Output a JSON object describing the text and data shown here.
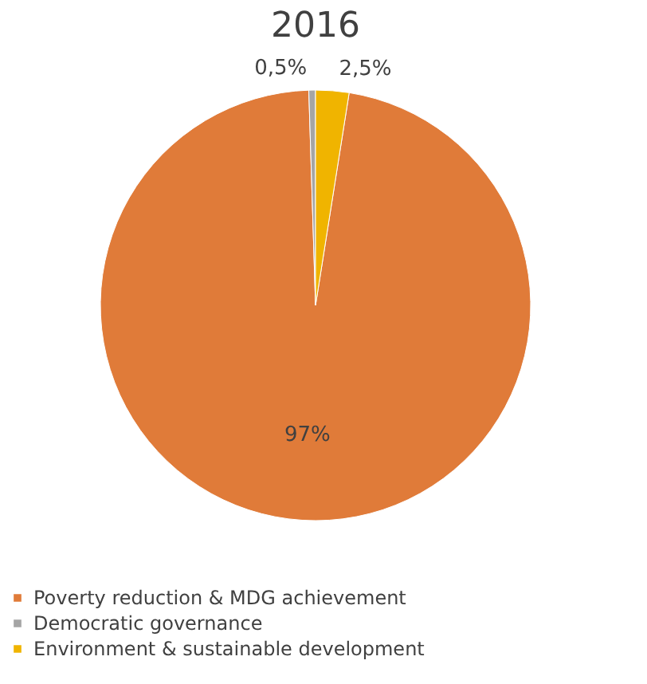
{
  "chart_data": {
    "type": "pie",
    "title": "2016",
    "categories": [
      "Poverty reduction & MDG achievement",
      "Democratic governance",
      "Environment & sustainable development"
    ],
    "values": [
      97,
      0.5,
      2.5
    ],
    "value_labels": [
      "97%",
      "0,5%",
      "2,5%"
    ],
    "colors": [
      "#e07b39",
      "#a5a5a5",
      "#f0b400"
    ],
    "legend": "bottom"
  }
}
